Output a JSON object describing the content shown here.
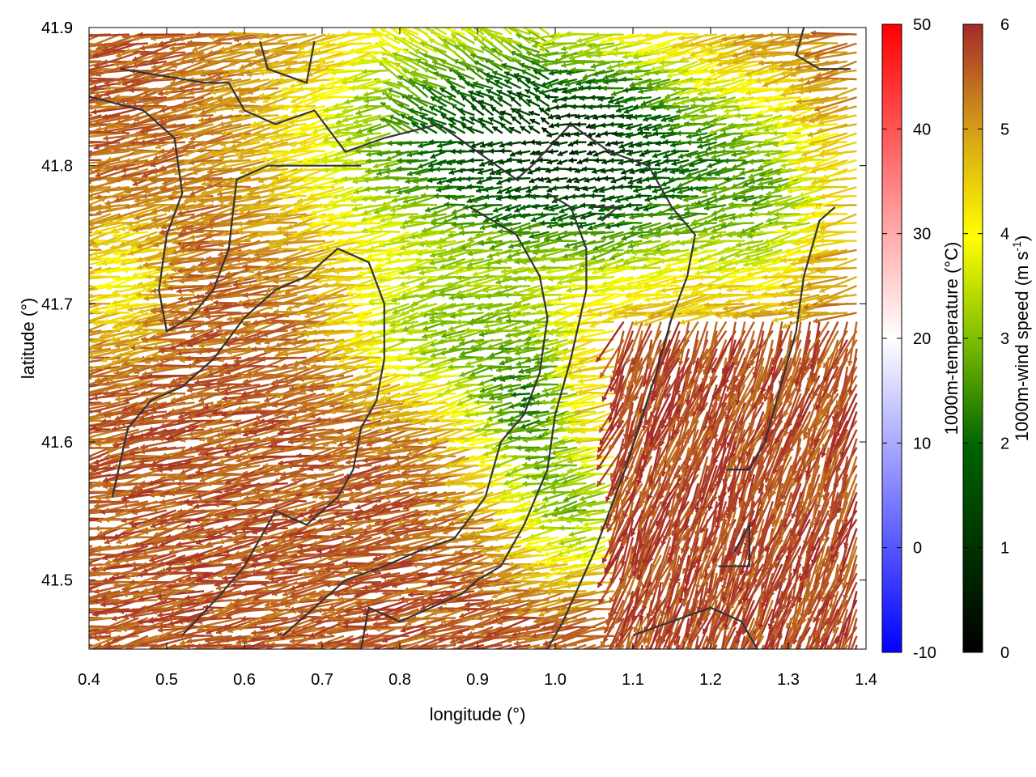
{
  "chart_data": {
    "type": "vector-field",
    "title": "",
    "xlabel": "longitude (°)",
    "ylabel": "latitude (°)",
    "xlim": [
      0.4,
      1.4
    ],
    "ylim": [
      41.45,
      41.9
    ],
    "xticks": [
      "0.4",
      "0.5",
      "0.6",
      "0.7",
      "0.8",
      "0.9",
      "1.0",
      "1.1",
      "1.2",
      "1.3",
      "1.4"
    ],
    "yticks": [
      "41.5",
      "41.6",
      "41.7",
      "41.8",
      "41.9"
    ],
    "grid": false,
    "colorbars": [
      {
        "label": "1000m-temperature (°C)",
        "range": [
          -10,
          50
        ],
        "ticks": [
          "-10",
          "0",
          "10",
          "20",
          "30",
          "40",
          "50"
        ],
        "colors": [
          "#0000ff",
          "#ffffff",
          "#ff0000"
        ]
      },
      {
        "label_main": "1000m-wind speed (m s",
        "label_sup": "-1",
        "label_end": ")",
        "range": [
          0,
          6
        ],
        "ticks": [
          "0",
          "1",
          "2",
          "3",
          "4",
          "5",
          "6"
        ],
        "colors": [
          "#000000",
          "#006400",
          "#7fbf00",
          "#ffff00",
          "#d4a017",
          "#a52a2a"
        ]
      }
    ],
    "field_description": "Wind vectors colored by speed, mostly pointing west; strong winds (~6 m/s) in west and southeast, weaker winds (1-3 m/s) in the north-central region; dark contour lines for terrain",
    "contour_color": "#333333"
  }
}
